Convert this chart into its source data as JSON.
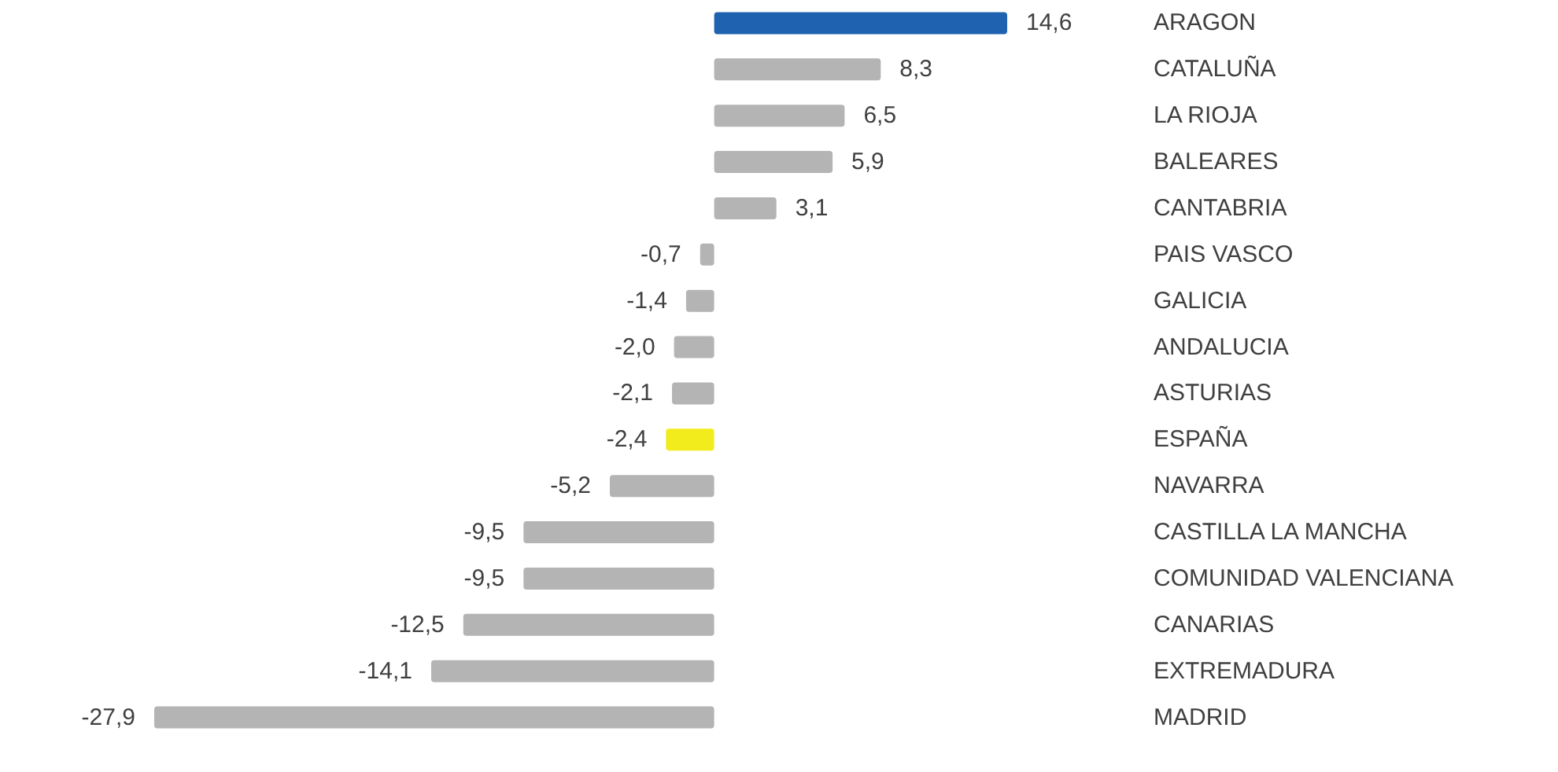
{
  "chart_data": {
    "type": "bar",
    "orientation": "horizontal",
    "categories": [
      "ARAGON",
      "CATALUÑA",
      "LA RIOJA",
      "BALEARES",
      "CANTABRIA",
      "PAIS VASCO",
      "GALICIA",
      "ANDALUCIA",
      "ASTURIAS",
      "ESPAÑA",
      "NAVARRA",
      "CASTILLA LA MANCHA",
      "COMUNIDAD VALENCIANA",
      "CANARIAS",
      "EXTREMADURA",
      "MADRID"
    ],
    "values": [
      14.6,
      8.3,
      6.5,
      5.9,
      3.1,
      -0.7,
      -1.4,
      -2.0,
      -2.1,
      -2.4,
      -5.2,
      -9.5,
      -9.5,
      -12.5,
      -14.1,
      -27.9
    ],
    "colors": [
      "#1f63b0",
      "#b4b4b4",
      "#b4b4b4",
      "#b4b4b4",
      "#b4b4b4",
      "#b4b4b4",
      "#b4b4b4",
      "#b4b4b4",
      "#b4b4b4",
      "#f2ec1c",
      "#b4b4b4",
      "#b4b4b4",
      "#b4b4b4",
      "#b4b4b4",
      "#b4b4b4",
      "#b4b4b4"
    ],
    "value_labels": [
      "14,6",
      "8,3",
      "6,5",
      "5,9",
      "3,1",
      "-0,7",
      "-1,4",
      "-2,0",
      "-2,1",
      "-2,4",
      "-5,2",
      "-9,5",
      "-9,5",
      "-12,5",
      "-14,1",
      "-27,9"
    ]
  }
}
